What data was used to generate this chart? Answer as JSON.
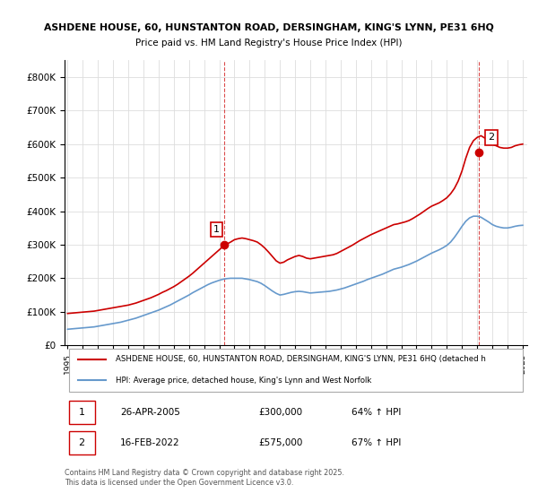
{
  "title1": "ASHDENE HOUSE, 60, HUNSTANTON ROAD, DERSINGHAM, KING'S LYNN, PE31 6HQ",
  "title2": "Price paid vs. HM Land Registry's House Price Index (HPI)",
  "legend_line1": "ASHDENE HOUSE, 60, HUNSTANTON ROAD, DERSINGHAM, KING'S LYNN, PE31 6HQ (detached h",
  "legend_line2": "HPI: Average price, detached house, King's Lynn and West Norfolk",
  "footnote": "Contains HM Land Registry data © Crown copyright and database right 2025.\nThis data is licensed under the Open Government Licence v3.0.",
  "sale1_label": "1",
  "sale1_date": "26-APR-2005",
  "sale1_price": "£300,000",
  "sale1_hpi": "64% ↑ HPI",
  "sale2_label": "2",
  "sale2_date": "16-FEB-2022",
  "sale2_price": "£575,000",
  "sale2_hpi": "67% ↑ HPI",
  "red_color": "#cc0000",
  "blue_color": "#6699cc",
  "dot_color": "#cc0000",
  "vline_color": "#cc0000",
  "grid_color": "#dddddd",
  "bg_color": "#ffffff",
  "ylim": [
    0,
    850000
  ],
  "yticks": [
    0,
    100000,
    200000,
    300000,
    400000,
    500000,
    600000,
    700000,
    800000
  ],
  "sale1_x": 2005.32,
  "sale1_y": 300000,
  "sale2_x": 2022.12,
  "sale2_y": 575000,
  "hpi_start_year": 1995,
  "red_years": [
    1995.0,
    1995.25,
    1995.5,
    1995.75,
    1996.0,
    1996.25,
    1996.5,
    1996.75,
    1997.0,
    1997.25,
    1997.5,
    1997.75,
    1998.0,
    1998.25,
    1998.5,
    1998.75,
    1999.0,
    1999.25,
    1999.5,
    1999.75,
    2000.0,
    2000.25,
    2000.5,
    2000.75,
    2001.0,
    2001.25,
    2001.5,
    2001.75,
    2002.0,
    2002.25,
    2002.5,
    2002.75,
    2003.0,
    2003.25,
    2003.5,
    2003.75,
    2004.0,
    2004.25,
    2004.5,
    2004.75,
    2005.0,
    2005.25,
    2005.5,
    2005.75,
    2006.0,
    2006.25,
    2006.5,
    2006.75,
    2007.0,
    2007.25,
    2007.5,
    2007.75,
    2008.0,
    2008.25,
    2008.5,
    2008.75,
    2009.0,
    2009.25,
    2009.5,
    2009.75,
    2010.0,
    2010.25,
    2010.5,
    2010.75,
    2011.0,
    2011.25,
    2011.5,
    2011.75,
    2012.0,
    2012.25,
    2012.5,
    2012.75,
    2013.0,
    2013.25,
    2013.5,
    2013.75,
    2014.0,
    2014.25,
    2014.5,
    2014.75,
    2015.0,
    2015.25,
    2015.5,
    2015.75,
    2016.0,
    2016.25,
    2016.5,
    2016.75,
    2017.0,
    2017.25,
    2017.5,
    2017.75,
    2018.0,
    2018.25,
    2018.5,
    2018.75,
    2019.0,
    2019.25,
    2019.5,
    2019.75,
    2020.0,
    2020.25,
    2020.5,
    2020.75,
    2021.0,
    2021.25,
    2021.5,
    2021.75,
    2022.0,
    2022.25,
    2022.5,
    2022.75,
    2023.0,
    2023.25,
    2023.5,
    2023.75,
    2024.0,
    2024.25,
    2024.5,
    2024.75,
    2025.0
  ],
  "red_values": [
    95000,
    96000,
    97000,
    98000,
    99000,
    100000,
    101000,
    102000,
    104000,
    106000,
    108000,
    110000,
    112000,
    114000,
    116000,
    118000,
    120000,
    123000,
    126000,
    130000,
    134000,
    138000,
    142000,
    147000,
    152000,
    158000,
    163000,
    169000,
    175000,
    182000,
    190000,
    198000,
    206000,
    215000,
    225000,
    235000,
    245000,
    255000,
    265000,
    275000,
    285000,
    295000,
    302000,
    308000,
    315000,
    318000,
    320000,
    318000,
    315000,
    312000,
    308000,
    300000,
    290000,
    278000,
    265000,
    252000,
    245000,
    248000,
    255000,
    260000,
    265000,
    268000,
    265000,
    260000,
    258000,
    260000,
    262000,
    264000,
    266000,
    268000,
    270000,
    274000,
    280000,
    286000,
    292000,
    298000,
    305000,
    312000,
    318000,
    324000,
    330000,
    335000,
    340000,
    345000,
    350000,
    355000,
    360000,
    362000,
    365000,
    368000,
    372000,
    378000,
    385000,
    392000,
    400000,
    408000,
    415000,
    420000,
    425000,
    432000,
    440000,
    452000,
    468000,
    490000,
    520000,
    558000,
    590000,
    610000,
    620000,
    625000,
    618000,
    610000,
    600000,
    595000,
    590000,
    588000,
    588000,
    590000,
    595000,
    598000,
    600000
  ],
  "blue_years": [
    1995.0,
    1995.25,
    1995.5,
    1995.75,
    1996.0,
    1996.25,
    1996.5,
    1996.75,
    1997.0,
    1997.25,
    1997.5,
    1997.75,
    1998.0,
    1998.25,
    1998.5,
    1998.75,
    1999.0,
    1999.25,
    1999.5,
    1999.75,
    2000.0,
    2000.25,
    2000.5,
    2000.75,
    2001.0,
    2001.25,
    2001.5,
    2001.75,
    2002.0,
    2002.25,
    2002.5,
    2002.75,
    2003.0,
    2003.25,
    2003.5,
    2003.75,
    2004.0,
    2004.25,
    2004.5,
    2004.75,
    2005.0,
    2005.25,
    2005.5,
    2005.75,
    2006.0,
    2006.25,
    2006.5,
    2006.75,
    2007.0,
    2007.25,
    2007.5,
    2007.75,
    2008.0,
    2008.25,
    2008.5,
    2008.75,
    2009.0,
    2009.25,
    2009.5,
    2009.75,
    2010.0,
    2010.25,
    2010.5,
    2010.75,
    2011.0,
    2011.25,
    2011.5,
    2011.75,
    2012.0,
    2012.25,
    2012.5,
    2012.75,
    2013.0,
    2013.25,
    2013.5,
    2013.75,
    2014.0,
    2014.25,
    2014.5,
    2014.75,
    2015.0,
    2015.25,
    2015.5,
    2015.75,
    2016.0,
    2016.25,
    2016.5,
    2016.75,
    2017.0,
    2017.25,
    2017.5,
    2017.75,
    2018.0,
    2018.25,
    2018.5,
    2018.75,
    2019.0,
    2019.25,
    2019.5,
    2019.75,
    2020.0,
    2020.25,
    2020.5,
    2020.75,
    2021.0,
    2021.25,
    2021.5,
    2021.75,
    2022.0,
    2022.25,
    2022.5,
    2022.75,
    2023.0,
    2023.25,
    2023.5,
    2023.75,
    2024.0,
    2024.25,
    2024.5,
    2024.75,
    2025.0
  ],
  "blue_values": [
    48000,
    49000,
    50000,
    51000,
    52000,
    53000,
    54000,
    55000,
    57000,
    59000,
    61000,
    63000,
    65000,
    67000,
    69000,
    72000,
    75000,
    78000,
    81000,
    85000,
    89000,
    93000,
    97000,
    101000,
    105000,
    110000,
    115000,
    120000,
    126000,
    132000,
    138000,
    144000,
    150000,
    157000,
    163000,
    169000,
    175000,
    181000,
    186000,
    190000,
    194000,
    197000,
    199000,
    200000,
    200000,
    200000,
    200000,
    198000,
    196000,
    193000,
    190000,
    185000,
    178000,
    170000,
    162000,
    155000,
    150000,
    152000,
    155000,
    158000,
    160000,
    161000,
    160000,
    158000,
    156000,
    157000,
    158000,
    159000,
    160000,
    161000,
    163000,
    165000,
    168000,
    171000,
    175000,
    179000,
    183000,
    187000,
    191000,
    196000,
    200000,
    204000,
    208000,
    212000,
    217000,
    222000,
    227000,
    230000,
    233000,
    237000,
    241000,
    246000,
    251000,
    257000,
    263000,
    269000,
    275000,
    280000,
    285000,
    291000,
    298000,
    308000,
    322000,
    338000,
    355000,
    370000,
    380000,
    385000,
    385000,
    382000,
    375000,
    368000,
    360000,
    355000,
    352000,
    350000,
    350000,
    352000,
    355000,
    357000,
    358000
  ],
  "xtick_years": [
    1995,
    1996,
    1997,
    1998,
    1999,
    2000,
    2001,
    2002,
    2003,
    2004,
    2005,
    2006,
    2007,
    2008,
    2009,
    2010,
    2011,
    2012,
    2013,
    2014,
    2015,
    2016,
    2017,
    2018,
    2019,
    2020,
    2021,
    2022,
    2023,
    2024,
    2025
  ]
}
